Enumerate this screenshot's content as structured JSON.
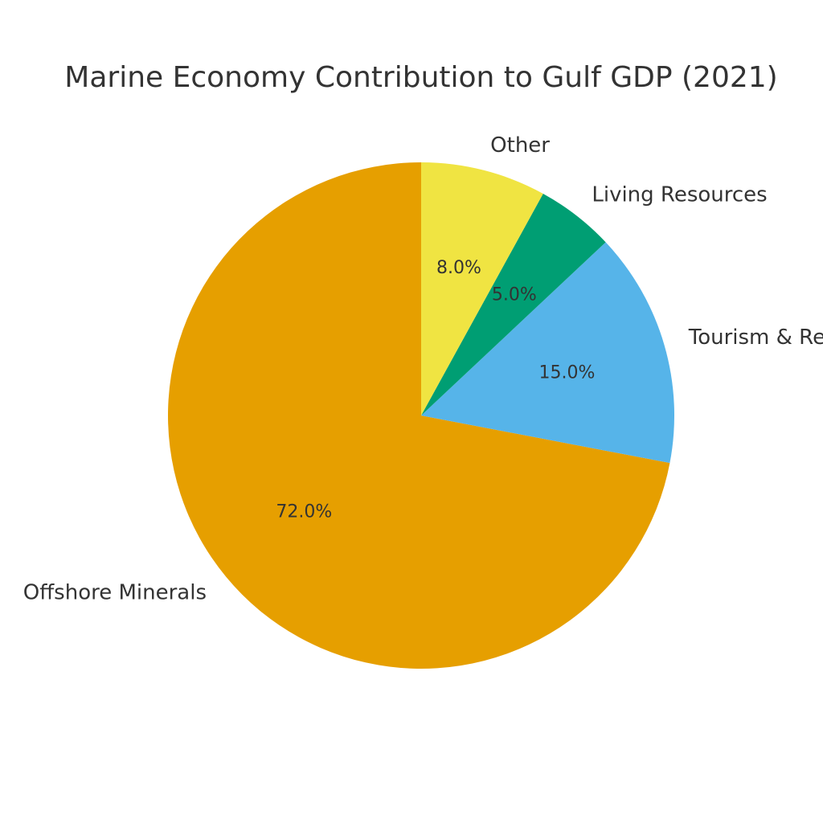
{
  "chart_data": {
    "type": "pie",
    "title": "Marine Economy Contribution to Gulf GDP (2021)",
    "start_angle_deg": 90,
    "direction": "counterclockwise",
    "slices": [
      {
        "label": "Offshore Minerals",
        "value": 72.0,
        "display": "72.0%",
        "color": "#E69F00"
      },
      {
        "label": "Tourism & Recreation",
        "value": 15.0,
        "display": "15.0%",
        "color": "#56B4E9"
      },
      {
        "label": "Living Resources",
        "value": 5.0,
        "display": "5.0%",
        "color": "#009E73"
      },
      {
        "label": "Other",
        "value": 8.0,
        "display": "8.0%",
        "color": "#F0E442"
      }
    ]
  }
}
